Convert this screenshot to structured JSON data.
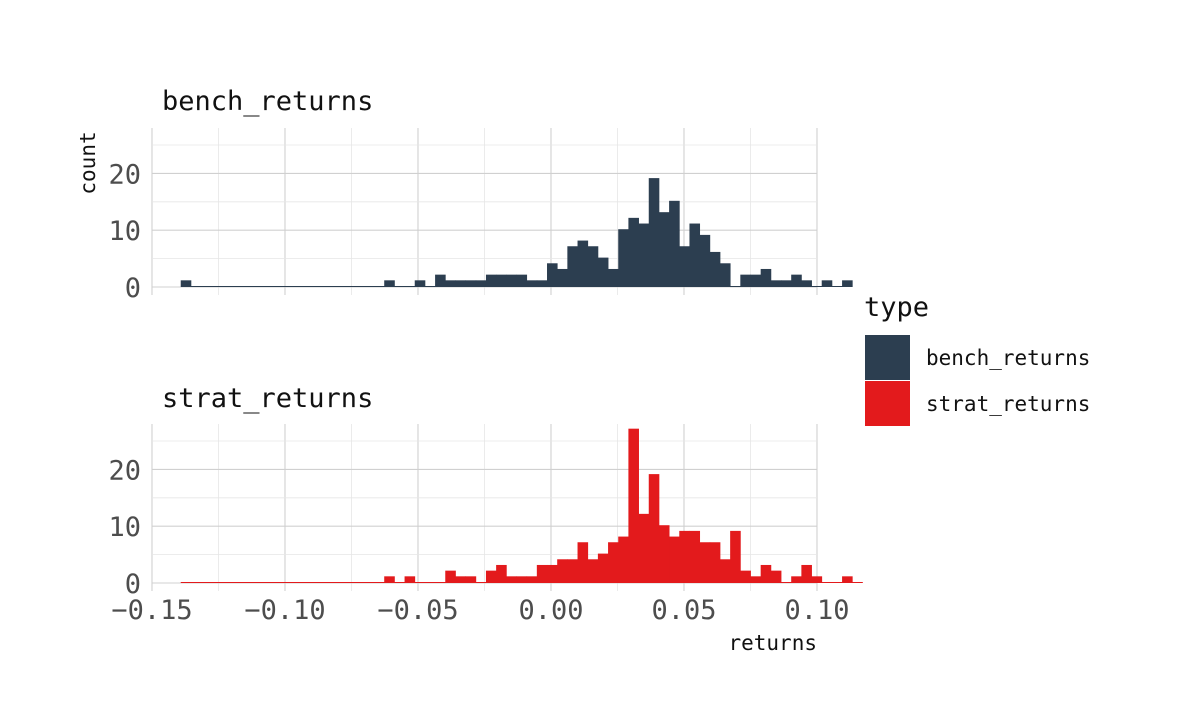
{
  "chart_data": {
    "type": "bar",
    "subtype": "faceted-histogram",
    "xlabel": "returns",
    "ylabel": "count",
    "xlim": [
      -0.15,
      0.1
    ],
    "ylim": [
      0,
      28
    ],
    "x_ticks": [
      {
        "value": -0.15,
        "label": "−0.15"
      },
      {
        "value": -0.1,
        "label": "−0.10"
      },
      {
        "value": -0.05,
        "label": "−0.05"
      },
      {
        "value": 0.0,
        "label": "0.00"
      },
      {
        "value": 0.05,
        "label": "0.05"
      },
      {
        "value": 0.1,
        "label": "0.10"
      }
    ],
    "y_ticks": [
      {
        "value": 0,
        "label": "0"
      },
      {
        "value": 10,
        "label": "10"
      },
      {
        "value": 20,
        "label": "20"
      }
    ],
    "bin_start": -0.1392,
    "bin_width": 0.003825,
    "legend": {
      "title": "type",
      "placement": "right",
      "entries": [
        {
          "label": "bench_returns",
          "color": "#2c3e50"
        },
        {
          "label": "strat_returns",
          "color": "#e31a1c"
        }
      ]
    },
    "series": [
      {
        "name": "bench_returns",
        "color": "#2c3e50",
        "values": [
          1,
          0,
          0,
          0,
          0,
          0,
          0,
          0,
          0,
          0,
          0,
          0,
          0,
          0,
          0,
          0,
          0,
          0,
          0,
          0,
          1,
          0,
          0,
          1,
          0,
          2,
          1,
          1,
          1,
          1,
          2,
          2,
          2,
          2,
          1,
          1,
          4,
          3,
          7,
          8,
          7,
          5,
          3,
          10,
          12,
          11,
          19,
          13,
          15,
          7,
          11,
          9,
          6,
          4,
          0,
          2,
          2,
          3,
          1,
          1,
          2,
          1,
          0,
          1,
          0,
          1
        ]
      },
      {
        "name": "strat_returns",
        "color": "#e31a1c",
        "values": [
          0,
          0,
          0,
          0,
          0,
          0,
          0,
          0,
          0,
          0,
          0,
          0,
          0,
          0,
          0,
          0,
          0,
          0,
          0,
          0,
          1,
          0,
          1,
          0,
          0,
          0,
          2,
          1,
          1,
          0,
          2,
          3,
          1,
          1,
          1,
          3,
          3,
          4,
          4,
          7,
          4,
          5,
          7,
          8,
          27,
          12,
          19,
          10,
          8,
          9,
          9,
          7,
          7,
          4,
          9,
          2,
          1,
          3,
          2,
          0,
          1,
          3,
          1,
          0,
          0,
          1,
          0
        ]
      }
    ]
  }
}
